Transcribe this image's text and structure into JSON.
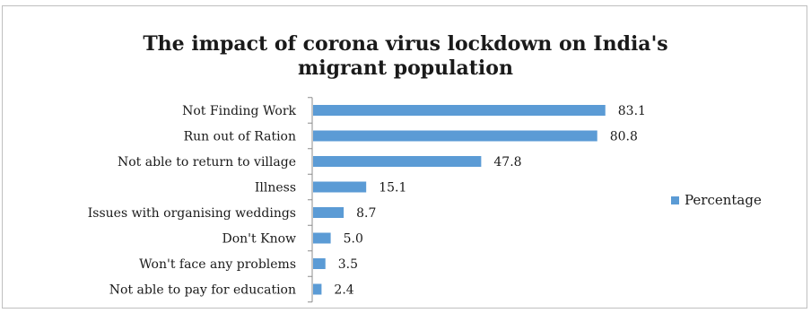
{
  "chart_data": {
    "type": "bar",
    "orientation": "horizontal",
    "title": "The impact of corona virus lockdown on India's\nmigrant population",
    "categories": [
      "Not Finding Work",
      "Run out of Ration",
      "Not able to return to village",
      "Illness",
      "Issues with organising weddings",
      "Don't Know",
      "Won't face any problems",
      "Not able to pay for education"
    ],
    "series": [
      {
        "name": "Percentage",
        "values": [
          83.1,
          80.8,
          47.8,
          15.1,
          8.7,
          5.0,
          3.5,
          2.4
        ],
        "value_labels": [
          "83.1",
          "80.8",
          "47.8",
          "15.1",
          "8.7",
          "5.0",
          "3.5",
          "2.4"
        ],
        "color": "#5b9bd5"
      }
    ],
    "legend": {
      "position": "right",
      "label": "Percentage"
    },
    "xlim": [
      0,
      90
    ],
    "grid": false
  }
}
